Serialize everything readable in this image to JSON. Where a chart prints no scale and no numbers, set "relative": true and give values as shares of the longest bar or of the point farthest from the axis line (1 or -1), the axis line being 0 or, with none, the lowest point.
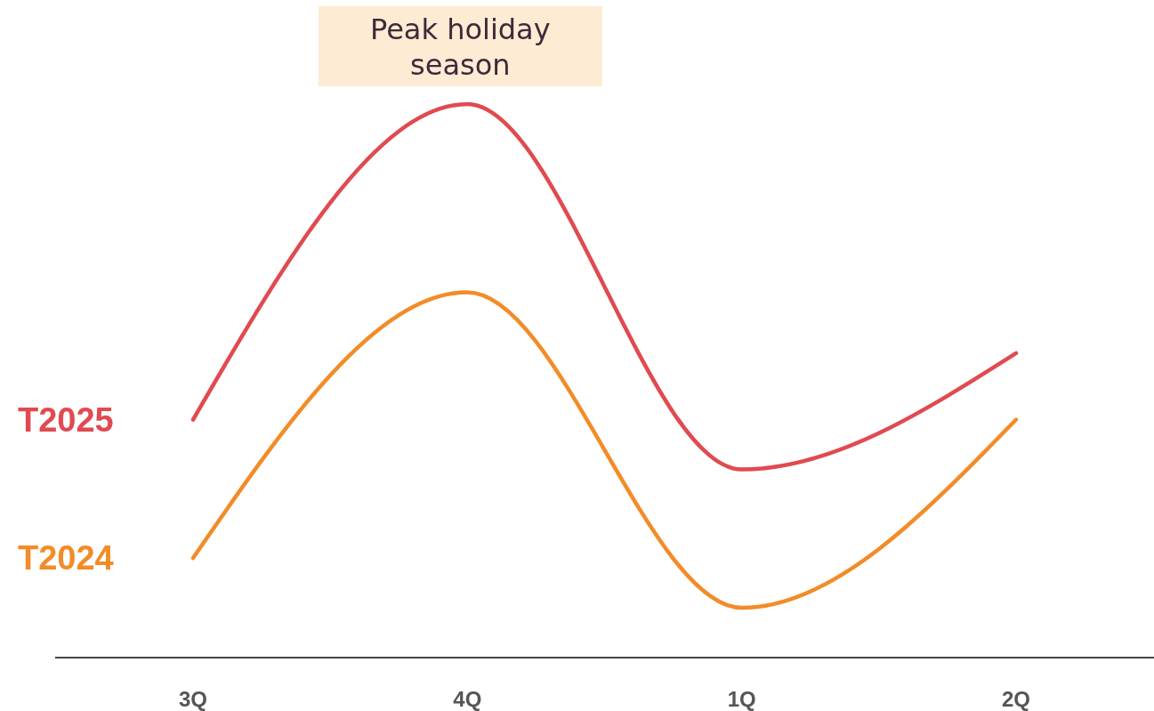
{
  "chart_data": {
    "type": "line",
    "relative": true,
    "categories": [
      "3Q",
      "4Q",
      "1Q",
      "2Q"
    ],
    "series": [
      {
        "name": "T2025",
        "color": "#e04a50",
        "values": [
          0.43,
          1,
          0.34,
          0.55
        ]
      },
      {
        "name": "T2024",
        "color": "#f28c28",
        "values": [
          0.18,
          0.66,
          0.09,
          0.43
        ]
      }
    ],
    "annotations": [
      "Peak holiday season"
    ]
  }
}
